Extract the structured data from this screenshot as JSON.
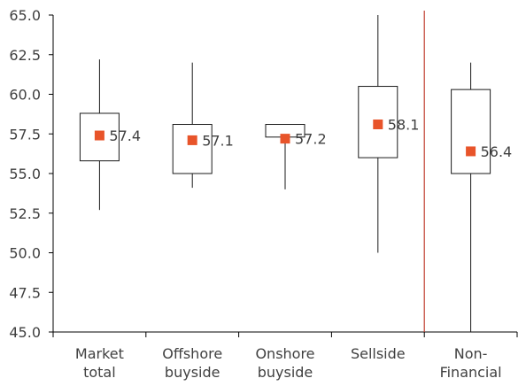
{
  "chart_data": {
    "type": "box",
    "title": "",
    "xlabel": "",
    "ylabel": "",
    "ylim": [
      45.0,
      65.0
    ],
    "ytick_step": 2.5,
    "yticks": [
      "45.0",
      "47.5",
      "50.0",
      "52.5",
      "55.0",
      "57.5",
      "60.0",
      "62.5",
      "65.0"
    ],
    "grid": false,
    "legend": "none",
    "categories": [
      {
        "lines": [
          "Market",
          "total"
        ]
      },
      {
        "lines": [
          "Offshore",
          "buyside"
        ]
      },
      {
        "lines": [
          "Onshore",
          "buyside"
        ]
      },
      {
        "lines": [
          "Sellside"
        ]
      },
      {
        "lines": [
          "Non-",
          "Financial"
        ]
      }
    ],
    "boxes": [
      {
        "min": 52.7,
        "q1": 55.8,
        "q3": 58.8,
        "max": 62.2,
        "mean": 57.4,
        "label": "57.4"
      },
      {
        "min": 54.1,
        "q1": 55.0,
        "q3": 58.1,
        "max": 62.0,
        "mean": 57.1,
        "label": "57.1"
      },
      {
        "min": 54.0,
        "q1": 57.3,
        "q3": 58.1,
        "max": 58.1,
        "mean": 57.2,
        "label": "57.2"
      },
      {
        "min": 50.0,
        "q1": 56.0,
        "q3": 60.5,
        "max": 65.0,
        "mean": 58.1,
        "label": "58.1"
      },
      {
        "min": 45.0,
        "q1": 55.0,
        "q3": 60.3,
        "max": 62.0,
        "mean": 56.4,
        "label": "56.4"
      }
    ],
    "divider_after_index": 3,
    "colors": {
      "axis": "#000000",
      "box_stroke": "#1a1a1a",
      "whisker": "#1a1a1a",
      "mean_marker": "#e8542a",
      "divider": "#c0392b",
      "tick_text": "#404040",
      "label_text": "#404040"
    }
  }
}
